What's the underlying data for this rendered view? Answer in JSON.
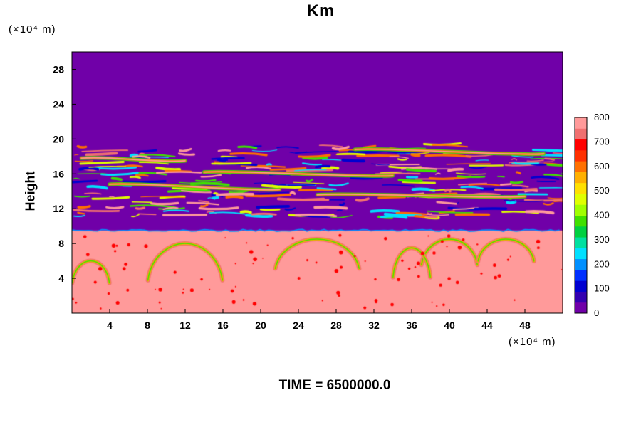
{
  "chart_data": {
    "type": "heatmap",
    "title": "Km",
    "ylabel": "Height",
    "xunit": "(×10⁴ m)",
    "yunit": "(×10⁴ m)",
    "xlim": [
      0,
      52
    ],
    "ylim": [
      0,
      30
    ],
    "xticks": [
      "4",
      "8",
      "12",
      "16",
      "20",
      "24",
      "28",
      "32",
      "36",
      "40",
      "44",
      "48"
    ],
    "yticks": [
      "4",
      "8",
      "12",
      "16",
      "20",
      "24",
      "28"
    ],
    "colorbar": {
      "min": 0,
      "max": 800,
      "labels": [
        "0",
        "100",
        "200",
        "300",
        "400",
        "500",
        "600",
        "700",
        "800"
      ],
      "colors": [
        "#7000a8",
        "#3300b0",
        "#0000d0",
        "#0030ff",
        "#0090ff",
        "#00e0ff",
        "#00e0a0",
        "#00d040",
        "#40e000",
        "#a0ff00",
        "#e0ff00",
        "#ffe000",
        "#ffb000",
        "#ff7000",
        "#ff3000",
        "#ff0000",
        "#f07070",
        "#ff9a9a"
      ]
    },
    "regions": {
      "upper_background_value": 0,
      "lower_background_value": 800,
      "boundary_height": 9.5,
      "turbulent_layer": [
        11,
        19.5
      ]
    },
    "footer": "TIME = 6500000.0"
  }
}
